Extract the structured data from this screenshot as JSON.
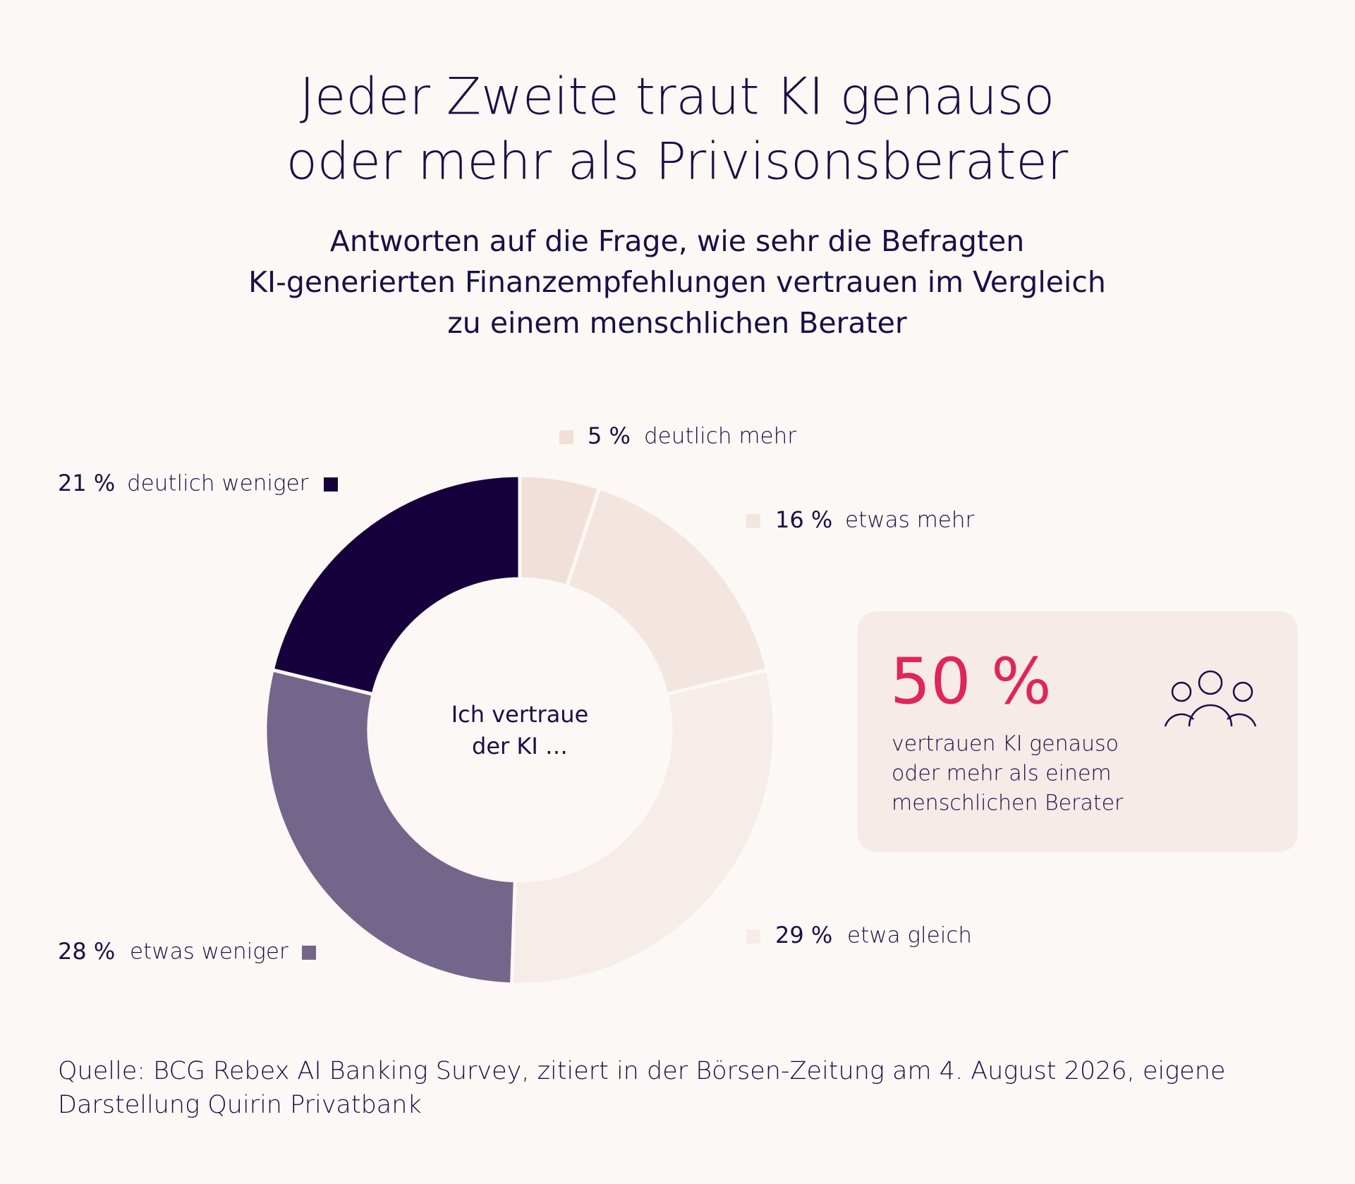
{
  "chart_data": {
    "type": "donut",
    "title": [
      "Jeder Zweite traut KI genauso",
      "oder mehr als Privisonsberater"
    ],
    "subtitle": [
      "Antworten auf die Frage, wie sehr die Befragten",
      "KI-generierten Finanzempfehlungen vertrauen im Vergleich",
      "zu einem menschlichen Berater"
    ],
    "center_label": [
      "Ich vertraue",
      "der KI …"
    ],
    "categories": [
      "deutlich mehr",
      "etwas mehr",
      "etwa gleich",
      "etwas weniger",
      "deutlich weniger"
    ],
    "values": [
      5,
      16,
      29,
      28,
      21
    ],
    "value_labels": [
      "5 %",
      "16 %",
      "29 %",
      "28 %",
      "21 %"
    ],
    "colors": [
      "#f1e0d9",
      "#f3e5e0",
      "#f6ece8",
      "#72678b",
      "#16003c"
    ],
    "highlight": {
      "label": "50 %",
      "text": [
        "vertrauen KI genauso",
        "oder mehr als einem",
        "menschlichen Berater"
      ]
    },
    "source": [
      "Quelle: BCG Rebex AI Banking Survey, zitiert in der Börsen-Zeitung am 4. August 2026, eigene",
      "Darstellung Quirin Privatbank"
    ]
  }
}
